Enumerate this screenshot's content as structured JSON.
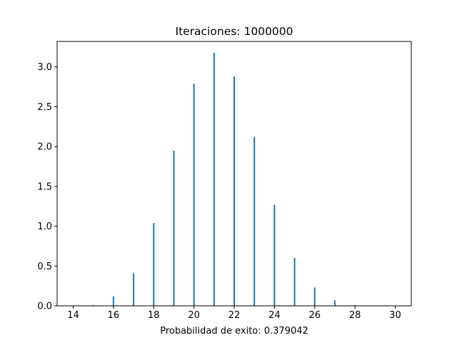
{
  "chart_data": {
    "type": "bar",
    "title": "Iteraciones: 1000000",
    "xlabel": "Probabilidad de exito: 0.379042",
    "ylabel": "",
    "xlim": [
      13.2,
      30.8
    ],
    "ylim": [
      0,
      3.32
    ],
    "xticks": [
      "14",
      "16",
      "18",
      "20",
      "22",
      "24",
      "26",
      "28",
      "30"
    ],
    "yticks": [
      "0.0",
      "0.5",
      "1.0",
      "1.5",
      "2.0",
      "2.5",
      "3.0"
    ],
    "bar_color": "#1f77b4",
    "grid": false,
    "x": [
      14,
      15,
      16,
      17,
      18,
      19,
      20,
      21,
      22,
      23,
      24,
      25,
      26,
      27,
      28,
      29,
      30
    ],
    "values": [
      0.0,
      0.01,
      0.12,
      0.41,
      1.04,
      1.95,
      2.79,
      3.18,
      2.88,
      2.12,
      1.27,
      0.6,
      0.23,
      0.07,
      0.01,
      0.0,
      0.0
    ]
  }
}
